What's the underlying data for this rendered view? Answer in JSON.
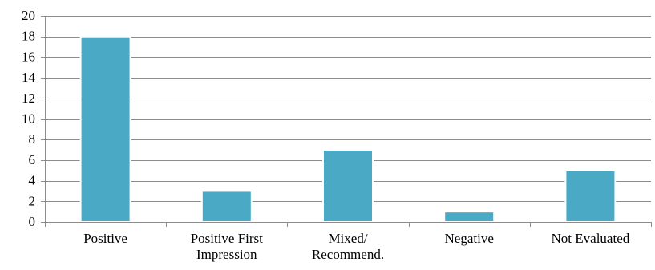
{
  "chart_data": {
    "type": "bar",
    "categories": [
      [
        "Positive"
      ],
      [
        "Positive First",
        "Impression"
      ],
      [
        "Mixed/",
        "Recommend."
      ],
      [
        "Negative"
      ],
      [
        "Not Evaluated"
      ]
    ],
    "values": [
      18,
      3,
      7,
      1,
      5
    ],
    "ylim": [
      0,
      20
    ],
    "yticks": [
      0,
      2,
      4,
      6,
      8,
      10,
      12,
      14,
      16,
      18,
      20
    ],
    "title": "",
    "xlabel": "",
    "ylabel": "",
    "grid": true,
    "legend": "none",
    "colors": {
      "bar": "#4aaac6",
      "bar_edge": "#ffffff",
      "grid": "#8c8c8c",
      "axis": "#8c8c8c",
      "text": "#000000"
    }
  }
}
